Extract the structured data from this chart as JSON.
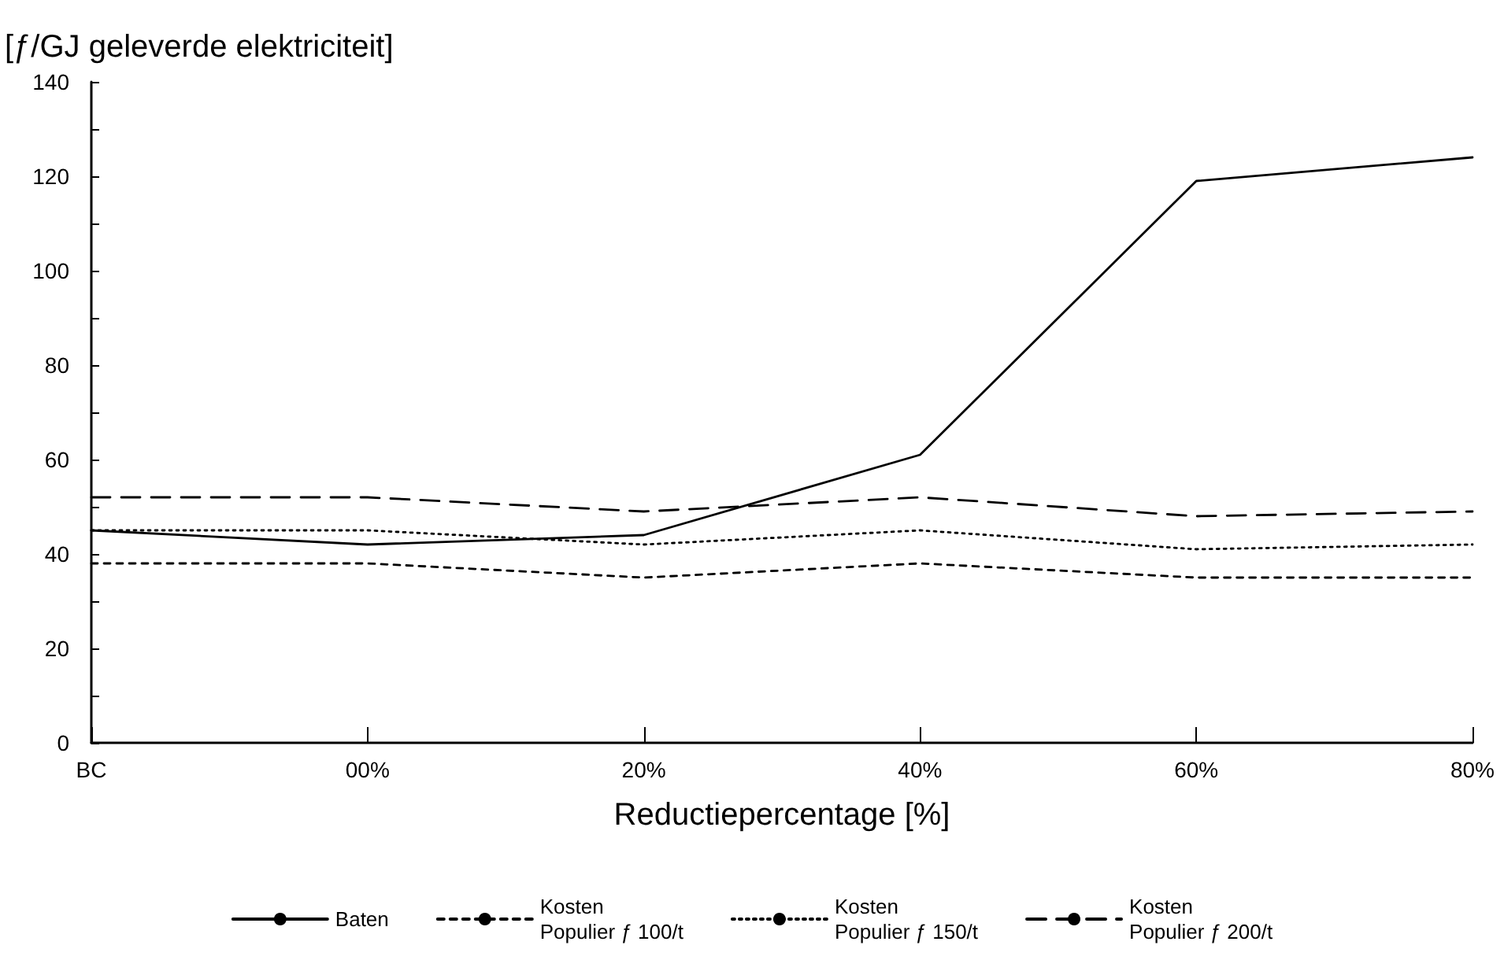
{
  "chart_data": {
    "type": "line",
    "ylabel": "[ƒ/GJ geleverde elektriciteit]",
    "xlabel": "Reductiepercentage [%]",
    "categories": [
      "BC",
      "00%",
      "20%",
      "40%",
      "60%",
      "80%"
    ],
    "series": [
      {
        "name": "Baten",
        "color": "#000000",
        "line_style": "solid",
        "values": [
          45,
          42,
          44,
          61,
          119,
          124
        ]
      },
      {
        "name": "Kosten\nPopulier ƒ 100/t",
        "color": "#000000",
        "line_style": "dashed",
        "values": [
          38,
          38,
          35,
          38,
          35,
          35
        ]
      },
      {
        "name": "Kosten\nPopulier ƒ 150/t",
        "color": "#000000",
        "line_style": "dotted",
        "values": [
          45,
          45,
          42,
          45,
          41,
          42
        ]
      },
      {
        "name": "Kosten\nPopulier ƒ 200/t",
        "color": "#000000",
        "line_style": "dashed",
        "values": [
          52,
          52,
          49,
          52,
          48,
          49
        ]
      }
    ],
    "ylim": [
      0,
      140
    ],
    "yticks": [
      0,
      {
        "value": 10,
        "label": null
      },
      20,
      {
        "value": 30,
        "label": null
      },
      40,
      {
        "value": 50,
        "label": null
      },
      60,
      {
        "value": 70,
        "label": null
      },
      80,
      {
        "value": 90,
        "label": null
      },
      100,
      {
        "value": 110,
        "label": null
      },
      120,
      {
        "value": 130,
        "label": null
      },
      140
    ],
    "grid": false,
    "marker": "none",
    "legend": "bottom"
  }
}
